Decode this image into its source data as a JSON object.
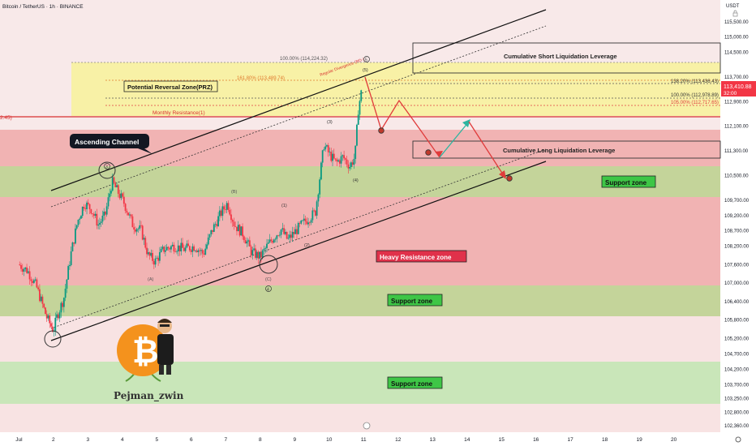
{
  "header": {
    "symbol": "Bitcoin / TetherUS · 1h · BINANCE",
    "currency": "USDT",
    "current_price": "113,410.88",
    "countdown": "32:00",
    "left_edge_label": "2.45)"
  },
  "chart_data": {
    "type": "candlestick",
    "title": "Bitcoin / TetherUS · 1h · BINANCE",
    "y_unit": "USDT",
    "ylim": [
      102150,
      116200
    ],
    "xlim": [
      0.45,
      21.35
    ],
    "x_ticks": [
      {
        "v": 1,
        "label": "Jul"
      },
      {
        "v": 2,
        "label": "2"
      },
      {
        "v": 3,
        "label": "3"
      },
      {
        "v": 4,
        "label": "4"
      },
      {
        "v": 5,
        "label": "5"
      },
      {
        "v": 6,
        "label": "6"
      },
      {
        "v": 7,
        "label": "7"
      },
      {
        "v": 8,
        "label": "8"
      },
      {
        "v": 9,
        "label": "9"
      },
      {
        "v": 10,
        "label": "10"
      },
      {
        "v": 11,
        "label": "11"
      },
      {
        "v": 12,
        "label": "12"
      },
      {
        "v": 13,
        "label": "13"
      },
      {
        "v": 14,
        "label": "14"
      },
      {
        "v": 15,
        "label": "15"
      },
      {
        "v": 16,
        "label": "16"
      },
      {
        "v": 17,
        "label": "17"
      },
      {
        "v": 18,
        "label": "18"
      },
      {
        "v": 19,
        "label": "19"
      },
      {
        "v": 20,
        "label": "20"
      }
    ],
    "y_ticks": [
      "115,500.00",
      "115,000.00",
      "114,500.00",
      "113,700.00",
      "112,900.00",
      "112,100.00",
      "111,300.00",
      "110,500.00",
      "109,700.00",
      "109,200.00",
      "108,700.00",
      "108,200.00",
      "107,600.00",
      "107,000.00",
      "106,400.00",
      "105,800.00",
      "105,200.00",
      "104,700.00",
      "104,200.00",
      "103,700.00",
      "103,250.00",
      "102,800.00",
      "102,360.00"
    ],
    "price_path": [
      [
        1.0,
        107.6
      ],
      [
        1.25,
        107.4
      ],
      [
        1.5,
        106.9
      ],
      [
        1.8,
        105.9
      ],
      [
        2.0,
        105.45
      ],
      [
        2.1,
        105.9
      ],
      [
        2.3,
        106.5
      ],
      [
        2.5,
        107.9
      ],
      [
        2.7,
        109.0
      ],
      [
        2.9,
        109.6
      ],
      [
        3.1,
        109.4
      ],
      [
        3.3,
        108.9
      ],
      [
        3.5,
        109.2
      ],
      [
        3.7,
        110.3
      ],
      [
        3.9,
        109.9
      ],
      [
        4.05,
        109.6
      ],
      [
        4.3,
        108.9
      ],
      [
        4.55,
        108.7
      ],
      [
        4.75,
        107.9
      ],
      [
        4.95,
        107.7
      ],
      [
        5.2,
        108.1
      ],
      [
        5.5,
        108.2
      ],
      [
        5.8,
        108.1
      ],
      [
        6.1,
        108.2
      ],
      [
        6.35,
        107.95
      ],
      [
        6.6,
        108.7
      ],
      [
        6.85,
        109.25
      ],
      [
        7.05,
        109.6
      ],
      [
        7.25,
        108.9
      ],
      [
        7.5,
        108.6
      ],
      [
        7.75,
        108.0
      ],
      [
        8.0,
        107.85
      ],
      [
        8.2,
        108.2
      ],
      [
        8.4,
        108.5
      ],
      [
        8.6,
        108.75
      ],
      [
        8.8,
        108.4
      ],
      [
        9.0,
        108.65
      ],
      [
        9.2,
        108.9
      ],
      [
        9.4,
        109.1
      ],
      [
        9.6,
        109.3
      ],
      [
        9.85,
        111.5
      ],
      [
        10.0,
        111.2
      ],
      [
        10.2,
        110.9
      ],
      [
        10.4,
        111.1
      ],
      [
        10.6,
        110.8
      ],
      [
        10.75,
        111.1
      ],
      [
        10.85,
        112.7
      ],
      [
        10.95,
        113.3
      ]
    ],
    "zones": [
      {
        "name": "Potential Reversal Zone(PRZ)",
        "from": 112.25,
        "to": 114.3
      },
      {
        "name": "Heavy Resistance zone",
        "from": 106.9,
        "to": 112.0
      },
      {
        "name": "Support zone",
        "from": 109.7,
        "to": 110.7
      },
      {
        "name": "Support zone",
        "from": 105.85,
        "to": 106.9
      },
      {
        "name": "Support zone",
        "from": 103.25,
        "to": 104.2
      }
    ],
    "levels": [
      {
        "label": "100.00% (114,224.32)",
        "value": 114.224
      },
      {
        "label": "161.80% (113,489.74)",
        "value": 113.49
      },
      {
        "label": "138.20% (113,436.43)",
        "value": 113.436
      },
      {
        "label": "100.00% (112,978.89)",
        "value": 112.979
      },
      {
        "label": "105.00% (112,717.65)",
        "value": 112.718
      },
      {
        "label": "Monthly Resistance(1)",
        "value": 112.2
      }
    ],
    "annotations": {
      "ascending_channel": "Ascending Channel",
      "prz": "Potential Reversal Zone(PRZ)",
      "monthly_resistance": "Monthly Resistance(1)",
      "short_liq": "Cumulative Short Liquidation Leverage",
      "long_liq": "Cumulative Long Liquidation Leverage",
      "support_1": "Support zone",
      "heavy_resistance": "Heavy Resistance zone",
      "support_2": "Support zone",
      "support_3": "Support zone",
      "divergence": "Regular Divergence (RD-)",
      "watermark": "Pejman_zwin"
    },
    "wave_labels": [
      "(5)",
      "(3)",
      "(4)",
      "(1)",
      "(2)",
      "(B)",
      "(A)",
      "(C)",
      "5",
      "3",
      "4"
    ]
  }
}
